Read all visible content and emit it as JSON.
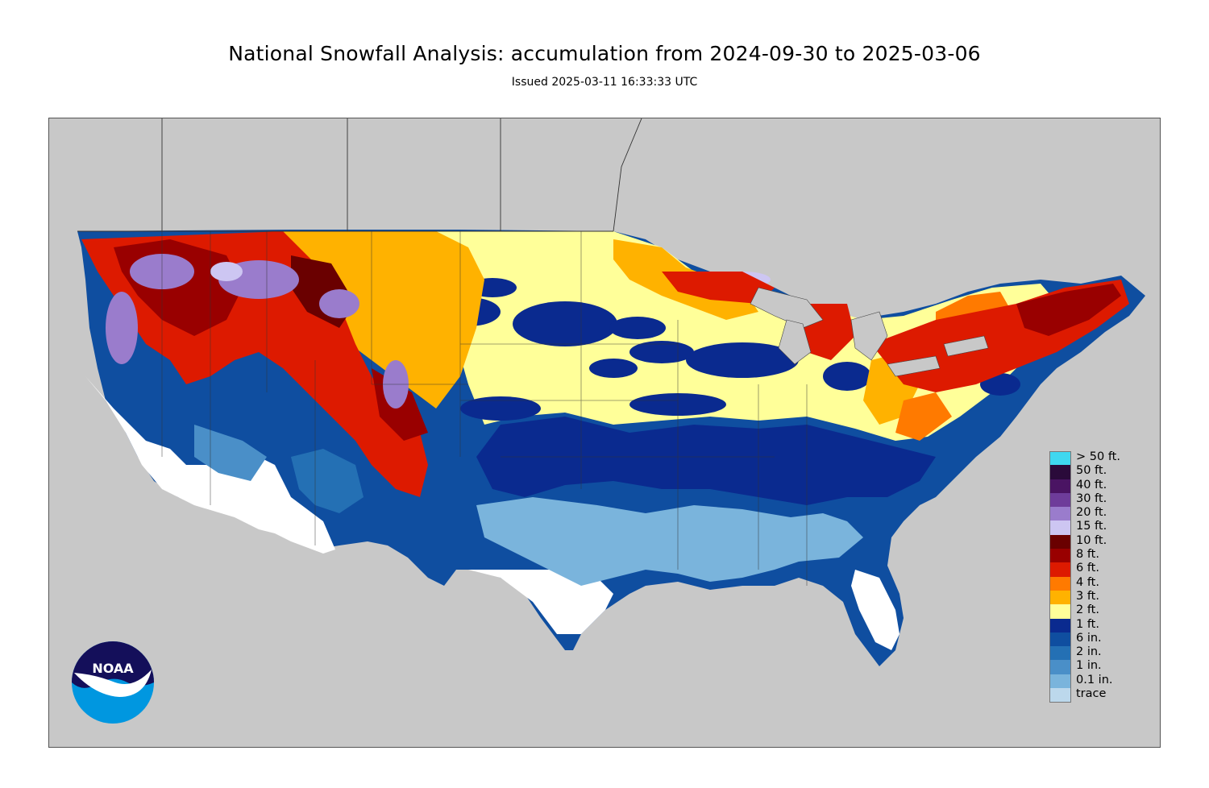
{
  "title": "National Snowfall Analysis: accumulation from 2024-09-30 to 2025-03-06",
  "subtitle": "Issued 2025-03-11 16:33:33 UTC",
  "logo": {
    "text": "NOAA",
    "icon": "noaa-logo-icon"
  },
  "colors": {
    "background_land_outside": "#c8c8c8",
    "state_lines": "#333333"
  },
  "legend": {
    "items": [
      {
        "label": "> 50 ft.",
        "color": "#3fd8f0"
      },
      {
        "label": "50 ft.",
        "color": "#2a0a3a"
      },
      {
        "label": "40 ft.",
        "color": "#4a1463"
      },
      {
        "label": "30 ft.",
        "color": "#6e3c9a"
      },
      {
        "label": "20 ft.",
        "color": "#9a7ccc"
      },
      {
        "label": "15 ft.",
        "color": "#cdc6f2"
      },
      {
        "label": "10 ft.",
        "color": "#6a0000"
      },
      {
        "label": "8 ft.",
        "color": "#990000"
      },
      {
        "label": "6 ft.",
        "color": "#dd1a00"
      },
      {
        "label": "4 ft.",
        "color": "#ff7a00"
      },
      {
        "label": "3 ft.",
        "color": "#ffb200"
      },
      {
        "label": "2 ft.",
        "color": "#ffff99"
      },
      {
        "label": "1 ft.",
        "color": "#0a2a8f"
      },
      {
        "label": "6 in.",
        "color": "#0f4ea0"
      },
      {
        "label": "2 in.",
        "color": "#2470b4"
      },
      {
        "label": "1 in.",
        "color": "#4a8fc8"
      },
      {
        "label": "0.1 in.",
        "color": "#7ab4dc"
      },
      {
        "label": "trace",
        "color": "#bcd8ec"
      }
    ],
    "below_trace_color": "#ffffff"
  }
}
